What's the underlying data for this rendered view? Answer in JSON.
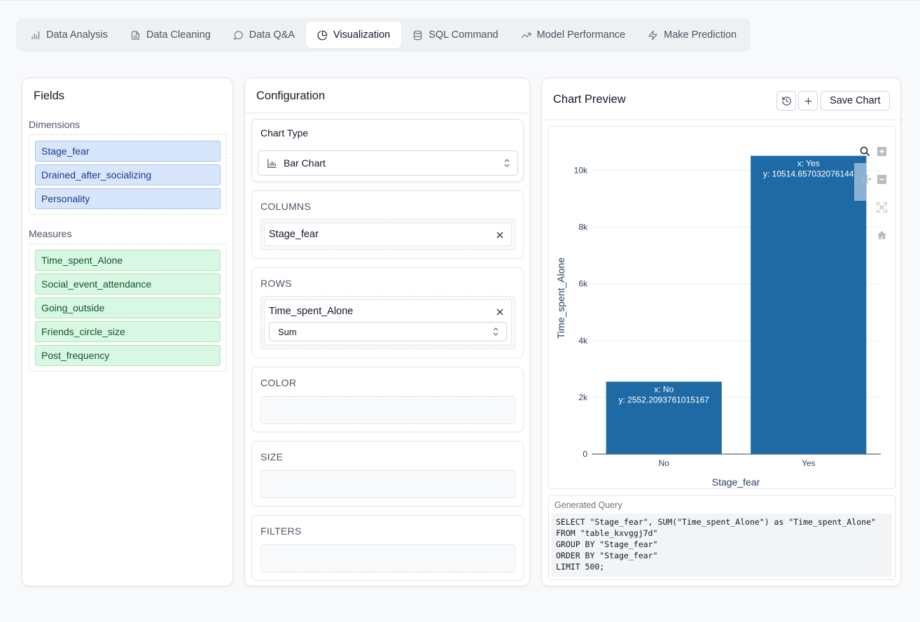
{
  "tabs": [
    {
      "label": "Data Analysis",
      "icon": "bar-chart-icon"
    },
    {
      "label": "Data Cleaning",
      "icon": "file-text-icon"
    },
    {
      "label": "Data Q&A",
      "icon": "message-circle-icon"
    },
    {
      "label": "Visualization",
      "icon": "pie-chart-icon",
      "active": true
    },
    {
      "label": "SQL Command",
      "icon": "database-icon"
    },
    {
      "label": "Model Performance",
      "icon": "trending-up-icon"
    },
    {
      "label": "Make Prediction",
      "icon": "zap-icon"
    }
  ],
  "fields": {
    "title": "Fields",
    "dimensions_label": "Dimensions",
    "dimensions": [
      "Stage_fear",
      "Drained_after_socializing",
      "Personality"
    ],
    "measures_label": "Measures",
    "measures": [
      "Time_spent_Alone",
      "Social_event_attendance",
      "Going_outside",
      "Friends_circle_size",
      "Post_frequency"
    ]
  },
  "config": {
    "title": "Configuration",
    "chart_type_label": "Chart Type",
    "chart_type_value": "Bar Chart",
    "columns_label": "COLUMNS",
    "columns_value": "Stage_fear",
    "rows_label": "ROWS",
    "rows_value": "Time_spent_Alone",
    "rows_agg": "Sum",
    "color_label": "COLOR",
    "size_label": "SIZE",
    "filters_label": "FILTERS"
  },
  "chart_panel": {
    "title": "Chart Preview",
    "save_label": "Save Chart",
    "query_label": "Generated Query",
    "query": "SELECT \"Stage_fear\", SUM(\"Time_spent_Alone\") as \"Time_spent_Alone\"\nFROM \"table_kxvggj7d\"\nGROUP BY \"Stage_fear\"\nORDER BY \"Stage_fear\"\nLIMIT 500;"
  },
  "colors": {
    "bar": "#1f6aa5",
    "accent": "#111827"
  },
  "chart_data": {
    "type": "bar",
    "categories": [
      "No",
      "Yes"
    ],
    "values": [
      2552.2093761015167,
      10514.657032076144
    ],
    "data_labels": [
      "x: No\ny: 2552.2093761015167",
      "x: Yes\ny: 10514.657032076144"
    ],
    "xlabel": "Stage_fear",
    "ylabel": "Time_spent_Alone",
    "ylim": [
      0,
      11000
    ],
    "yticks": [
      0,
      2000,
      4000,
      6000,
      8000,
      10000
    ],
    "ytick_labels": [
      "0",
      "2k",
      "4k",
      "6k",
      "8k",
      "10k"
    ],
    "grid": true
  }
}
